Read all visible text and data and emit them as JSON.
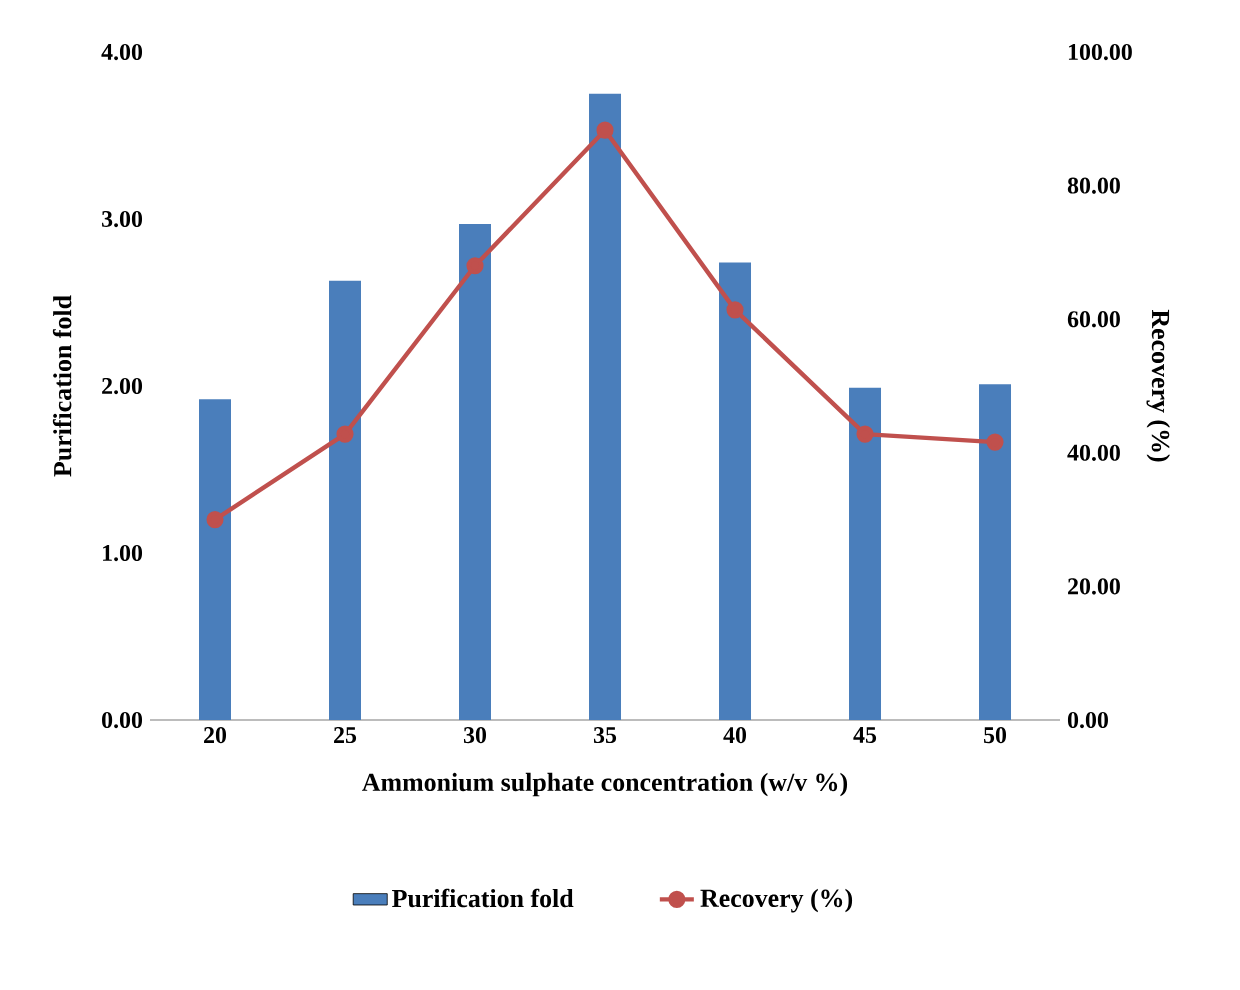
{
  "chart_data": {
    "type": "bar",
    "categories": [
      "20",
      "25",
      "30",
      "35",
      "40",
      "45",
      "50"
    ],
    "xlabel": "Ammonium sulphate concentration (w/v %)",
    "ylabel": "Purification fold",
    "y2label": "Recovery (%)",
    "ylim": [
      0,
      4
    ],
    "yticks": [
      {
        "value": 0,
        "label": "0.00"
      },
      {
        "value": 1,
        "label": "1.00"
      },
      {
        "value": 2,
        "label": "2.00"
      },
      {
        "value": 3,
        "label": "3.00"
      },
      {
        "value": 4,
        "label": "4.00"
      }
    ],
    "y2lim": [
      0,
      100
    ],
    "y2ticks": [
      {
        "value": 0,
        "label": "0.00"
      },
      {
        "value": 20,
        "label": "20.00"
      },
      {
        "value": 40,
        "label": "40.00"
      },
      {
        "value": 60,
        "label": "60.00"
      },
      {
        "value": 80,
        "label": "80.00"
      },
      {
        "value": 100,
        "label": "100.00"
      }
    ],
    "legend": "bottom",
    "series": [
      {
        "name": "Purification fold",
        "color": "#4a7ebb",
        "values": [
          1.92,
          2.63,
          2.97,
          3.75,
          2.74,
          1.99,
          2.01
        ]
      },
      {
        "name": "Recovery (%)",
        "type": "line",
        "axis": "y2",
        "marker": "circle",
        "color": "#c0504d",
        "values": [
          30,
          42.8,
          68,
          88.3,
          61.4,
          42.8,
          41.6
        ]
      }
    ]
  }
}
